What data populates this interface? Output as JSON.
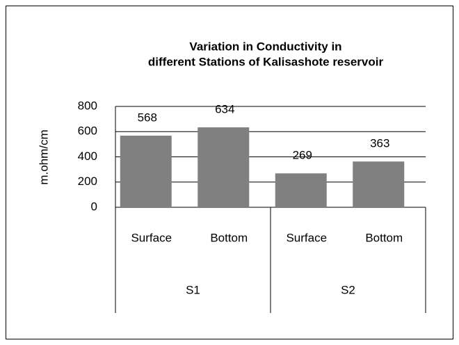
{
  "chart_data": {
    "type": "bar",
    "title": [
      "Variation in Conductivity in",
      "different Stations of Kalisashote reservoir"
    ],
    "ylabel": "m.ohm/cm",
    "categories": [
      "Surface",
      "Bottom",
      "Surface",
      "Bottom"
    ],
    "group_labels": [
      "S1",
      "S2"
    ],
    "values": [
      568,
      634,
      269,
      363
    ],
    "color": "#808080",
    "ylim": [
      0,
      800
    ],
    "yticks": [
      0,
      200,
      400,
      600,
      800
    ],
    "grid": true
  }
}
